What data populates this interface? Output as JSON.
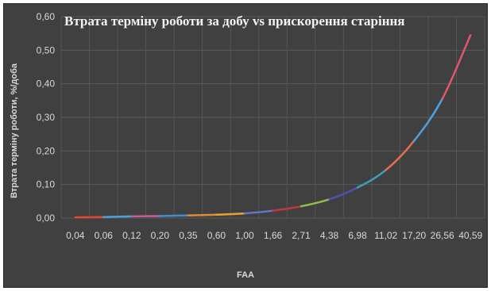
{
  "chart_data": {
    "type": "line",
    "title": "Втрата терміну роботи за добу vs прискорення старіння",
    "xlabel": "FAA",
    "ylabel": "Втрата терміну роботи, %/доба",
    "categories": [
      "0,04",
      "0,06",
      "0,12",
      "0,20",
      "0,35",
      "0,60",
      "1,00",
      "1,66",
      "2,71",
      "4,38",
      "6,98",
      "11,02",
      "17,20",
      "26,56",
      "40,59"
    ],
    "y_tick_labels": [
      "0,00",
      "0,10",
      "0,20",
      "0,30",
      "0,40",
      "0,50",
      "0,60"
    ],
    "ylim": [
      0,
      0.6
    ],
    "grid": true,
    "legend": "none",
    "series": [
      {
        "values": [
          0.002,
          0.003,
          0.005,
          0.006,
          0.008,
          0.01,
          0.014,
          0.022,
          0.035,
          0.056,
          0.091,
          0.143,
          0.23,
          0.355,
          0.545
        ]
      }
    ],
    "segment_colors": [
      "#e8462f",
      "#4f9fd8",
      "#c85a9a",
      "#3f8fd0",
      "#e08a3c",
      "#f0a030",
      "#6078c8",
      "#c03840",
      "#8cc048",
      "#5050b0",
      "#3aa0b8",
      "#e07050",
      "#50a0e0",
      "#e05868",
      "#c8e070"
    ]
  }
}
